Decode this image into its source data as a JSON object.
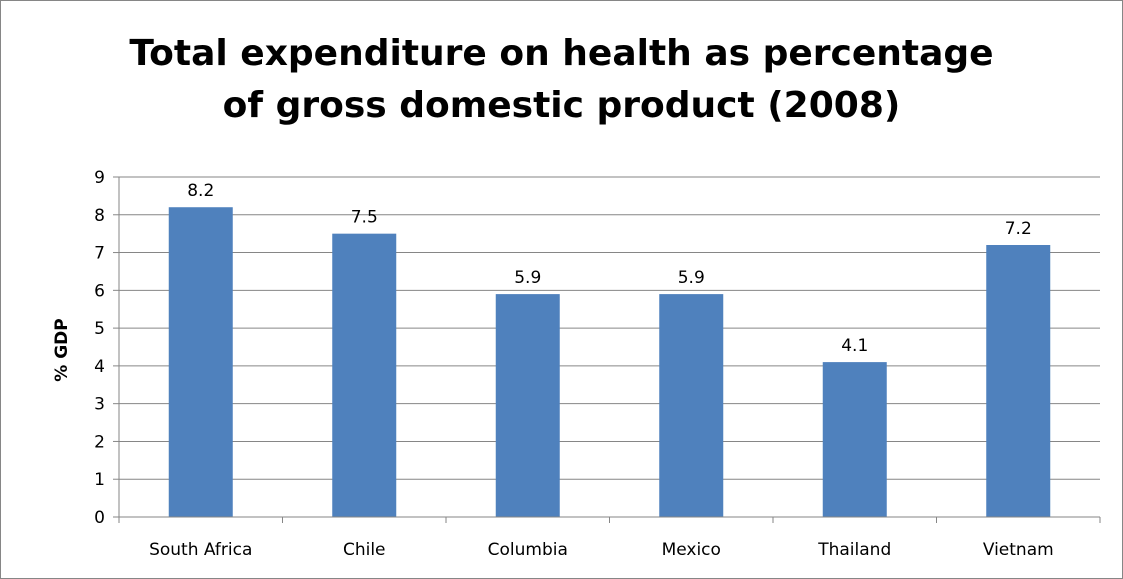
{
  "chart_data": {
    "type": "bar",
    "title_lines": [
      "Total expenditure on health as percentage",
      "of gross domestic product (2008)"
    ],
    "xlabel": "",
    "ylabel": "% GDP",
    "categories": [
      "South Africa",
      "Chile",
      "Columbia",
      "Mexico",
      "Thailand",
      "Vietnam"
    ],
    "values": [
      8.2,
      7.5,
      5.9,
      5.9,
      4.1,
      7.2
    ],
    "data_labels": [
      "8.2",
      "7.5",
      "5.9",
      "5.9",
      "4.1",
      "7.2"
    ],
    "ylim": [
      0,
      9
    ],
    "yticks": [
      "0",
      "1",
      "2",
      "3",
      "4",
      "5",
      "6",
      "7",
      "8",
      "9"
    ],
    "grid": true,
    "legend": "none",
    "bar_color": "#4F81BD",
    "grid_color": "#868686"
  }
}
